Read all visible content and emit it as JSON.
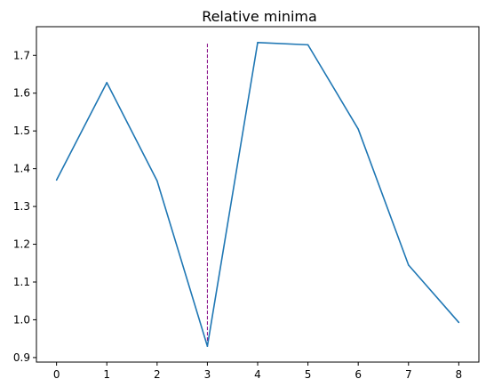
{
  "chart_data": {
    "type": "line",
    "title": "Relative minima",
    "xlabel": "",
    "ylabel": "",
    "x": [
      0,
      1,
      2,
      3,
      4,
      5,
      6,
      7,
      8
    ],
    "xticks": [
      0,
      1,
      2,
      3,
      4,
      5,
      6,
      7,
      8
    ],
    "xtick_labels": [
      "0",
      "1",
      "2",
      "3",
      "4",
      "5",
      "6",
      "7",
      "8"
    ],
    "yticks": [
      0.9,
      1.0,
      1.1,
      1.2,
      1.3,
      1.4,
      1.5,
      1.6,
      1.7
    ],
    "ytick_labels": [
      "0.9",
      "1.0",
      "1.1",
      "1.2",
      "1.3",
      "1.4",
      "1.5",
      "1.6",
      "1.7"
    ],
    "xlim": [
      -0.4,
      8.4
    ],
    "ylim": [
      0.888,
      1.776
    ],
    "series": [
      {
        "values": [
          1.37,
          1.628,
          1.368,
          0.93,
          1.734,
          1.728,
          1.505,
          1.145,
          0.993
        ],
        "color": "#1f77b4"
      }
    ],
    "vlines": [
      {
        "x": 3,
        "ymin": 0.93,
        "ymax": 1.734,
        "color": "#800080",
        "style": "dashed"
      }
    ],
    "grid": false,
    "legend": "none"
  }
}
